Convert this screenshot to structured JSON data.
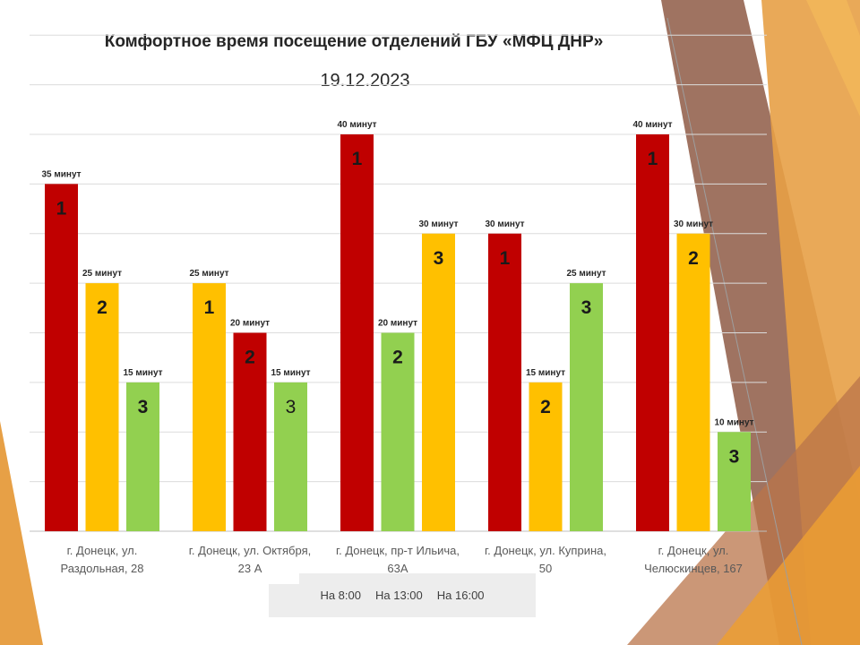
{
  "chart_data": {
    "type": "bar",
    "title": "Комфортное время посещение отделений ГБУ «МФЦ ДНР»",
    "subtitle": "19.12.2023",
    "xlabel": "",
    "ylabel": "",
    "ylim": [
      0,
      40
    ],
    "grid": true,
    "legend_position": "bottom",
    "categories": [
      "г. Донецк, ул. Раздольная, 28",
      "г. Донецк, ул. Октября, 23 А",
      "г. Донецк, пр-т Ильича, 63А",
      "г. Донецк, ул. Куприна, 50",
      "г. Донецк, ул. Челюскинцев, 167"
    ],
    "category_lines": [
      [
        "г. Донецк, ул.",
        "Раздольная, 28"
      ],
      [
        "г. Донецк, ул. Октября,",
        "23 А"
      ],
      [
        "г. Донецк, пр-т Ильича,",
        "63А"
      ],
      [
        "г. Донецк, ул. Куприна,",
        "50"
      ],
      [
        "г. Донецк, ул.",
        "Челюскинцев, 167"
      ]
    ],
    "series": [
      {
        "name": "На 8:00",
        "values": [
          35,
          25,
          40,
          30,
          40
        ],
        "labels": [
          "35 минут",
          "25 минут",
          "40 минут",
          "30 минут",
          "40 минут"
        ],
        "ranks": [
          "1",
          "1",
          "1",
          "1",
          "1"
        ],
        "colors": [
          "#c00000",
          "#ffc000",
          "#c00000",
          "#c00000",
          "#c00000"
        ]
      },
      {
        "name": "На 13:00",
        "values": [
          25,
          20,
          20,
          15,
          30
        ],
        "labels": [
          "25 минут",
          "20 минут",
          "20 минут",
          "15 минут",
          "30 минут"
        ],
        "ranks": [
          "2",
          "2",
          "2",
          "2",
          "2"
        ],
        "colors": [
          "#ffc000",
          "#c00000",
          "#92d050",
          "#ffc000",
          "#ffc000"
        ]
      },
      {
        "name": "На 16:00",
        "values": [
          15,
          15,
          30,
          25,
          10
        ],
        "labels": [
          "15 минут",
          "15 минут",
          "30 минут",
          "25 минут",
          "10 минут"
        ],
        "ranks": [
          "3",
          "3",
          "3",
          "3",
          "3"
        ],
        "colors": [
          "#92d050",
          "#92d050",
          "#ffc000",
          "#92d050",
          "#92d050"
        ]
      }
    ]
  }
}
